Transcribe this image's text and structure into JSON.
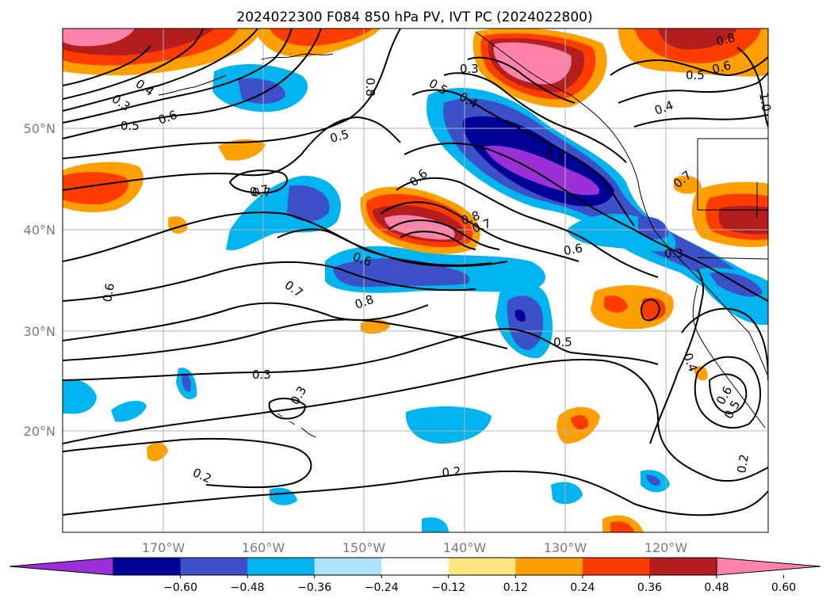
{
  "title": "2024022300 F084 850 hPa PV, IVT PC (2024022800)",
  "lat_labels": [
    "50°N",
    "40°N",
    "30°N",
    "20°N"
  ],
  "lon_labels": [
    "170°W",
    "160°W",
    "150°W",
    "140°W",
    "130°W",
    "120°W"
  ],
  "colorbar": {
    "ticks": [
      "−0.60",
      "−0.48",
      "−0.36",
      "−0.24",
      "−0.12",
      "0.12",
      "0.24",
      "0.36",
      "0.48",
      "0.60"
    ],
    "colors": [
      "#9b30d9",
      "#000096",
      "#3c50c8",
      "#00b4f0",
      "#aee1fa",
      "#ffffff",
      "#ffe680",
      "#ffa000",
      "#ff3c00",
      "#b41e1e",
      "#ff82aa"
    ]
  },
  "contour_labels": [
    {
      "id": "c1",
      "text": "0.3"
    },
    {
      "id": "c2",
      "text": "0.4"
    },
    {
      "id": "c3",
      "text": "0.5"
    },
    {
      "id": "c4",
      "text": "0.6"
    },
    {
      "id": "c5",
      "text": "0.7"
    },
    {
      "id": "c6",
      "text": "0.8"
    },
    {
      "id": "c7",
      "text": "0.5"
    },
    {
      "id": "c8",
      "text": "0.4"
    },
    {
      "id": "c9",
      "text": "0.3"
    },
    {
      "id": "c10",
      "text": "0.3"
    },
    {
      "id": "c11",
      "text": "0.8"
    },
    {
      "id": "c12",
      "text": "0.6"
    },
    {
      "id": "c13",
      "text": "0.5"
    },
    {
      "id": "c14",
      "text": "0.4"
    },
    {
      "id": "c15",
      "text": "0.5"
    },
    {
      "id": "c16",
      "text": "0.6"
    },
    {
      "id": "c17",
      "text": "0.7"
    },
    {
      "id": "c18",
      "text": "0.6"
    },
    {
      "id": "c19",
      "text": "0.8"
    },
    {
      "id": "c20",
      "text": "0.7"
    },
    {
      "id": "c21",
      "text": "0.6"
    },
    {
      "id": "c22",
      "text": "0.3"
    },
    {
      "id": "c23",
      "text": "0.6"
    },
    {
      "id": "c24",
      "text": "0.7"
    },
    {
      "id": "c25",
      "text": "0.8"
    },
    {
      "id": "c26",
      "text": "0.5"
    },
    {
      "id": "c27",
      "text": "0.3"
    },
    {
      "id": "c28",
      "text": "0.3"
    },
    {
      "id": "c29",
      "text": "0.4"
    },
    {
      "id": "c30",
      "text": "0.6"
    },
    {
      "id": "c31",
      "text": "0.5"
    },
    {
      "id": "c32",
      "text": "0.2"
    },
    {
      "id": "c33",
      "text": "0.2"
    },
    {
      "id": "c34",
      "text": "0.2"
    },
    {
      "id": "c35",
      "text": "0.7"
    },
    {
      "id": "c36",
      "text": "1.0"
    }
  ]
}
